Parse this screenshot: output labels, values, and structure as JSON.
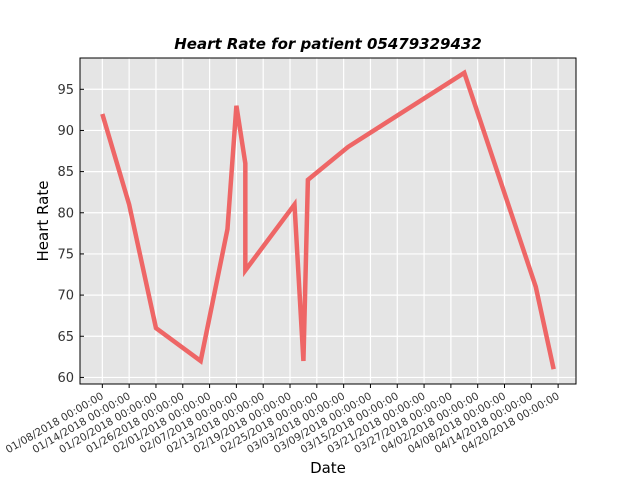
{
  "chart_data": {
    "type": "line",
    "title": "Heart Rate for patient 05479329432",
    "xlabel": "Date",
    "ylabel": "Heart Rate",
    "x_ticks": [
      "01/08/2018 00:00:00",
      "01/14/2018 00:00:00",
      "01/20/2018 00:00:00",
      "01/26/2018 00:00:00",
      "02/01/2018 00:00:00",
      "02/07/2018 00:00:00",
      "02/13/2018 00:00:00",
      "02/19/2018 00:00:00",
      "02/25/2018 00:00:00",
      "03/03/2018 00:00:00",
      "03/09/2018 00:00:00",
      "03/15/2018 00:00:00",
      "03/21/2018 00:00:00",
      "03/27/2018 00:00:00",
      "04/02/2018 00:00:00",
      "04/08/2018 00:00:00",
      "04/14/2018 00:00:00",
      "04/20/2018 00:00:00"
    ],
    "xlim": [
      "2018-01-03",
      "2018-04-24"
    ],
    "y_ticks": [
      60,
      65,
      70,
      75,
      80,
      85,
      90,
      95
    ],
    "ylim": [
      59.2,
      98.8
    ],
    "grid": true,
    "series": [
      {
        "color": "#ee6666",
        "points": [
          {
            "x": "2018-01-08",
            "y": 92
          },
          {
            "x": "2018-01-14",
            "y": 81
          },
          {
            "x": "2018-01-20",
            "y": 66
          },
          {
            "x": "2018-01-30",
            "y": 62
          },
          {
            "x": "2018-02-05",
            "y": 78
          },
          {
            "x": "2018-02-07",
            "y": 93
          },
          {
            "x": "2018-02-09",
            "y": 86
          },
          {
            "x": "2018-02-09",
            "y": 73
          },
          {
            "x": "2018-02-20",
            "y": 81
          },
          {
            "x": "2018-02-22",
            "y": 62
          },
          {
            "x": "2018-02-23",
            "y": 84
          },
          {
            "x": "2018-03-04",
            "y": 88
          },
          {
            "x": "2018-03-30",
            "y": 97
          },
          {
            "x": "2018-04-15",
            "y": 71
          },
          {
            "x": "2018-04-19",
            "y": 61
          }
        ]
      }
    ]
  }
}
